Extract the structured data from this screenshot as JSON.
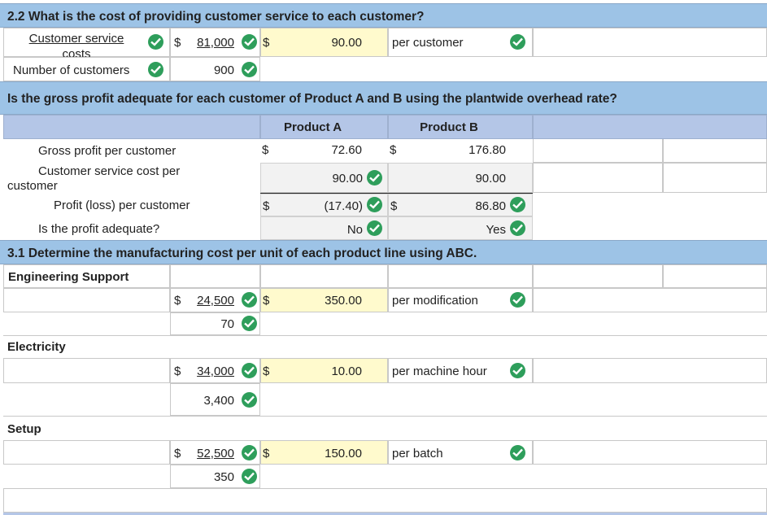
{
  "colors": {
    "band": "#9dc3e6",
    "header_grey": "#b4c6e7",
    "input_yellow": "#fffacd",
    "check_green": "#2e9e5b"
  },
  "section_2_2": {
    "title": "2.2 What is the cost of providing customer service to each customer?",
    "cs_costs_label": "Customer service costs",
    "cs_currency": "$",
    "cs_costs_value": "81,000",
    "rate_currency": "$",
    "rate_value": "90.00",
    "rate_unit": "per customer",
    "num_customers_label": "Number of customers",
    "num_customers_value": "900"
  },
  "profit_section": {
    "title": "Is the gross profit adequate for each customer of Product A and B using the plantwide overhead rate?",
    "col_a": "Product A",
    "col_b": "Product B",
    "rows": {
      "gross_profit": {
        "label": "Gross profit per customer",
        "cur_a": "$",
        "a": "72.60",
        "cur_b": "$",
        "b": "176.80"
      },
      "service_cost": {
        "label_line1": "Customer service cost per",
        "label_line2": "customer",
        "a": "90.00",
        "b": "90.00"
      },
      "profit_loss": {
        "label": "Profit (loss) per customer",
        "cur_a": "$",
        "a": "(17.40)",
        "cur_b": "$",
        "b": "86.80"
      },
      "adequate": {
        "label": "Is the profit adequate?",
        "a": "No",
        "b": "Yes"
      }
    }
  },
  "section_3_1": {
    "title": "3.1 Determine the manufacturing cost per unit of each product line using ABC.",
    "activities": [
      {
        "name": "Engineering Support",
        "currency": "$",
        "cost": "24,500",
        "driver_qty": "70",
        "rate_currency": "$",
        "rate": "350.00",
        "unit": "per modification"
      },
      {
        "name": "Electricity",
        "currency": "$",
        "cost": "34,000",
        "driver_qty": "3,400",
        "rate_currency": "$",
        "rate": "10.00",
        "unit": "per machine hour"
      },
      {
        "name": "Setup",
        "currency": "$",
        "cost": "52,500",
        "driver_qty": "350",
        "rate_currency": "$",
        "rate": "150.00",
        "unit": "per batch"
      }
    ]
  }
}
